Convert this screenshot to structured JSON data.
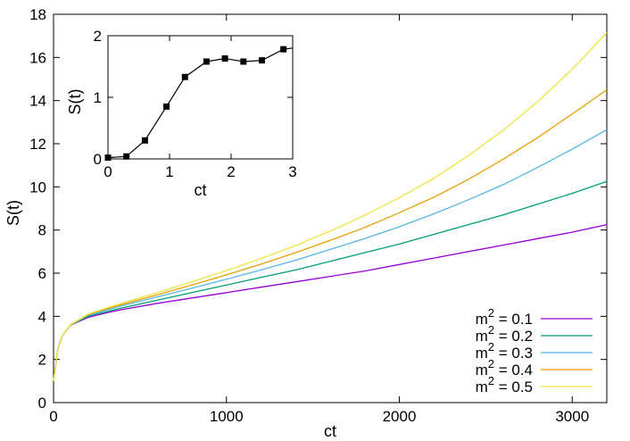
{
  "chart_data": [
    {
      "type": "line",
      "xlabel": "ct",
      "ylabel": "S(t)",
      "xlim": [
        0,
        3200
      ],
      "ylim": [
        0,
        18
      ],
      "xticks": [
        0,
        1000,
        2000,
        3000
      ],
      "yticks": [
        0,
        2,
        4,
        6,
        8,
        10,
        12,
        14,
        16,
        18
      ],
      "legend_position": "bottom-right",
      "legend_title_prefix": "m",
      "legend_exponent": "2",
      "grid": false,
      "series": [
        {
          "name": "m^2 = 0.1",
          "legend_value": " = 0.1",
          "color": "#9400d3",
          "x": [
            0,
            25,
            50,
            100,
            200,
            300,
            400,
            600,
            800,
            1000,
            1200,
            1400,
            1600,
            1800,
            2000,
            2200,
            2400,
            2600,
            2800,
            3000,
            3200
          ],
          "y": [
            1.0,
            2.5,
            3.1,
            3.6,
            3.95,
            4.15,
            4.32,
            4.6,
            4.85,
            5.1,
            5.35,
            5.6,
            5.85,
            6.1,
            6.4,
            6.7,
            7.0,
            7.3,
            7.6,
            7.9,
            8.25
          ]
        },
        {
          "name": "m^2 = 0.2",
          "legend_value": " = 0.2",
          "color": "#009e73",
          "x": [
            0,
            25,
            50,
            100,
            200,
            300,
            400,
            600,
            800,
            1000,
            1200,
            1400,
            1600,
            1800,
            2000,
            2200,
            2400,
            2600,
            2800,
            3000,
            3200
          ],
          "y": [
            1.0,
            2.5,
            3.1,
            3.6,
            4.0,
            4.2,
            4.4,
            4.75,
            5.1,
            5.45,
            5.8,
            6.15,
            6.55,
            6.95,
            7.35,
            7.8,
            8.25,
            8.7,
            9.2,
            9.7,
            10.25
          ]
        },
        {
          "name": "m^2 = 0.3",
          "legend_value": " = 0.3",
          "color": "#56b4e9",
          "x": [
            0,
            25,
            50,
            100,
            200,
            300,
            400,
            600,
            800,
            1000,
            1200,
            1400,
            1600,
            1800,
            2000,
            2200,
            2400,
            2600,
            2800,
            3000,
            3200
          ],
          "y": [
            1.0,
            2.5,
            3.1,
            3.6,
            4.05,
            4.28,
            4.5,
            4.9,
            5.3,
            5.72,
            6.15,
            6.6,
            7.1,
            7.6,
            8.15,
            8.75,
            9.4,
            10.1,
            10.9,
            11.75,
            12.65
          ]
        },
        {
          "name": "m^2 = 0.4",
          "legend_value": " = 0.4",
          "color": "#e69f00",
          "x": [
            0,
            25,
            50,
            100,
            200,
            300,
            400,
            600,
            800,
            1000,
            1200,
            1400,
            1600,
            1800,
            2000,
            2200,
            2400,
            2600,
            2800,
            3000,
            3200
          ],
          "y": [
            1.0,
            2.5,
            3.1,
            3.62,
            4.08,
            4.33,
            4.56,
            5.0,
            5.45,
            5.92,
            6.42,
            6.95,
            7.52,
            8.12,
            8.8,
            9.52,
            10.35,
            11.28,
            12.28,
            13.38,
            14.5
          ]
        },
        {
          "name": "m^2 = 0.5",
          "legend_value": " = 0.5",
          "color": "#f0e442",
          "x": [
            0,
            25,
            50,
            100,
            200,
            300,
            400,
            600,
            800,
            1000,
            1200,
            1400,
            1600,
            1800,
            2000,
            2200,
            2400,
            2600,
            2800,
            3000,
            3200
          ],
          "y": [
            1.0,
            2.5,
            3.1,
            3.63,
            4.1,
            4.37,
            4.62,
            5.1,
            5.6,
            6.12,
            6.68,
            7.28,
            7.95,
            8.68,
            9.5,
            10.4,
            11.45,
            12.62,
            13.95,
            15.45,
            17.15
          ]
        }
      ]
    },
    {
      "type": "line",
      "inset": true,
      "xlabel": "ct",
      "ylabel": "S(t)",
      "xlim": [
        0,
        3
      ],
      "ylim": [
        0,
        2
      ],
      "xticks": [
        0,
        1,
        2,
        3
      ],
      "yticks": [
        0,
        1,
        2
      ],
      "marker": "square",
      "color": "#000000",
      "series": [
        {
          "name": "",
          "x": [
            0.0,
            0.3,
            0.6,
            0.95,
            1.25,
            1.6,
            1.9,
            2.2,
            2.5,
            2.85,
            3.0
          ],
          "y": [
            0.02,
            0.04,
            0.3,
            0.85,
            1.33,
            1.58,
            1.63,
            1.58,
            1.6,
            1.78,
            1.8
          ]
        }
      ]
    }
  ]
}
